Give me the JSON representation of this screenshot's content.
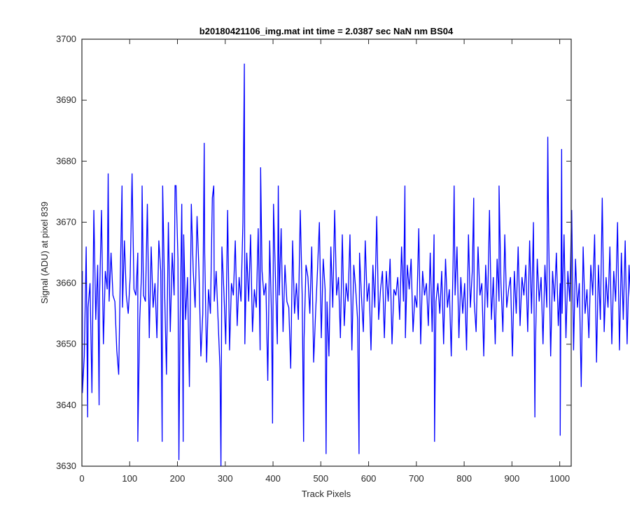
{
  "chart_data": {
    "type": "line",
    "title": "b20180421106_img.mat int time = 2.0387 sec  NaN nm BS04",
    "xlabel": "Track Pixels",
    "ylabel": "Signal (ADU) at pixel 839",
    "xlim": [
      0,
      1024
    ],
    "ylim": [
      3630,
      3700
    ],
    "xticks": [
      0,
      100,
      200,
      300,
      400,
      500,
      600,
      700,
      800,
      900,
      1000
    ],
    "yticks": [
      3630,
      3640,
      3650,
      3660,
      3670,
      3680,
      3690,
      3700
    ],
    "grid": false,
    "series": [
      {
        "color": "#0000ff",
        "sample_step": 4,
        "y_start": 1,
        "values": [
          3662,
          3648,
          3666,
          3656,
          3660,
          3642,
          3672,
          3654,
          3663,
          3658,
          3672,
          3650,
          3662,
          3659,
          3657,
          3665,
          3658,
          3657,
          3649,
          3645,
          3664,
          3656,
          3667,
          3658,
          3655,
          3661,
          3678,
          3659,
          3658,
          3665,
          3654,
          3662,
          3658,
          3657,
          3673,
          3651,
          3666,
          3656,
          3660,
          3651,
          3667,
          3662,
          3676,
          3659,
          3645,
          3670,
          3652,
          3665,
          3658,
          3676,
          3664,
          3650,
          3673,
          3668,
          3654,
          3661,
          3643,
          3673,
          3662,
          3656,
          3671,
          3662,
          3648,
          3655,
          3665,
          3647,
          3659,
          3655,
          3674,
          3657,
          3662,
          3654,
          3646,
          3666,
          3659,
          3650,
          3672,
          3649,
          3660,
          3658,
          3667,
          3653,
          3661,
          3657,
          3670,
          3650,
          3665,
          3657,
          3668,
          3652,
          3659,
          3656,
          3669,
          3649,
          3662,
          3658,
          3660,
          3644,
          3667,
          3654,
          3673,
          3661,
          3650,
          3658,
          3669,
          3652,
          3663,
          3657,
          3656,
          3646,
          3667,
          3655,
          3660,
          3654,
          3672,
          3658,
          3651,
          3663,
          3661,
          3655,
          3666,
          3647,
          3655,
          3662,
          3670,
          3651,
          3664,
          3659,
          3657,
          3648,
          3666,
          3656,
          3672,
          3658,
          3661,
          3651,
          3668,
          3653,
          3660,
          3657,
          3668,
          3649,
          3663,
          3659,
          3654,
          3665,
          3658,
          3652,
          3667,
          3657,
          3660,
          3649,
          3663,
          3656,
          3671,
          3654,
          3659,
          3662,
          3651,
          3662,
          3657,
          3664,
          3650,
          3659,
          3658,
          3661,
          3654,
          3666,
          3657,
          3651,
          3663,
          3659,
          3664,
          3652,
          3658,
          3656,
          3669,
          3650,
          3662,
          3658,
          3660,
          3653,
          3665,
          3652,
          3668,
          3657,
          3660,
          3655,
          3662,
          3650,
          3664,
          3656,
          3659,
          3648,
          3664,
          3658,
          3666,
          3651,
          3661,
          3655,
          3660,
          3649,
          3668,
          3656,
          3662,
          3657,
          3652,
          3666,
          3658,
          3660,
          3648,
          3663,
          3656,
          3672,
          3654,
          3661,
          3650,
          3664,
          3657,
          3660,
          3652,
          3668,
          3656,
          3659,
          3661,
          3648,
          3662,
          3655,
          3666,
          3653,
          3661,
          3658,
          3663,
          3652,
          3667,
          3655,
          3670,
          3649,
          3664,
          3657,
          3661,
          3650,
          3663,
          3656,
          3667,
          3648,
          3662,
          3657,
          3665,
          3653,
          3660,
          3655,
          3668,
          3651,
          3662,
          3657,
          3672,
          3649,
          3664,
          3656,
          3660,
          3643,
          3666,
          3655,
          3659,
          3651,
          3663,
          3658,
          3668,
          3647,
          3663,
          3654,
          3674,
          3652,
          3661,
          3656,
          3666,
          3650,
          3662,
          3657,
          3670,
          3649,
          3665,
          3654,
          3667,
          3650,
          3663,
          3656,
          3663,
          3652,
          3661,
          3658
        ]
      }
    ],
    "highlights": [
      {
        "x": 1,
        "y": 3642
      },
      {
        "x": 12,
        "y": 3638
      },
      {
        "x": 36,
        "y": 3640
      },
      {
        "x": 55,
        "y": 3678
      },
      {
        "x": 84,
        "y": 3676
      },
      {
        "x": 117,
        "y": 3634
      },
      {
        "x": 126,
        "y": 3676
      },
      {
        "x": 168,
        "y": 3634
      },
      {
        "x": 195,
        "y": 3676
      },
      {
        "x": 203,
        "y": 3631
      },
      {
        "x": 212,
        "y": 3634
      },
      {
        "x": 256,
        "y": 3683
      },
      {
        "x": 276,
        "y": 3676
      },
      {
        "x": 291,
        "y": 3630
      },
      {
        "x": 340,
        "y": 3696
      },
      {
        "x": 374,
        "y": 3679
      },
      {
        "x": 399,
        "y": 3637
      },
      {
        "x": 411,
        "y": 3676
      },
      {
        "x": 464,
        "y": 3634
      },
      {
        "x": 511,
        "y": 3632
      },
      {
        "x": 580,
        "y": 3632
      },
      {
        "x": 676,
        "y": 3676
      },
      {
        "x": 738,
        "y": 3634
      },
      {
        "x": 779,
        "y": 3676
      },
      {
        "x": 820,
        "y": 3674
      },
      {
        "x": 873,
        "y": 3676
      },
      {
        "x": 948,
        "y": 3638
      },
      {
        "x": 975,
        "y": 3684
      },
      {
        "x": 1001,
        "y": 3635
      },
      {
        "x": 1004,
        "y": 3682
      }
    ]
  }
}
